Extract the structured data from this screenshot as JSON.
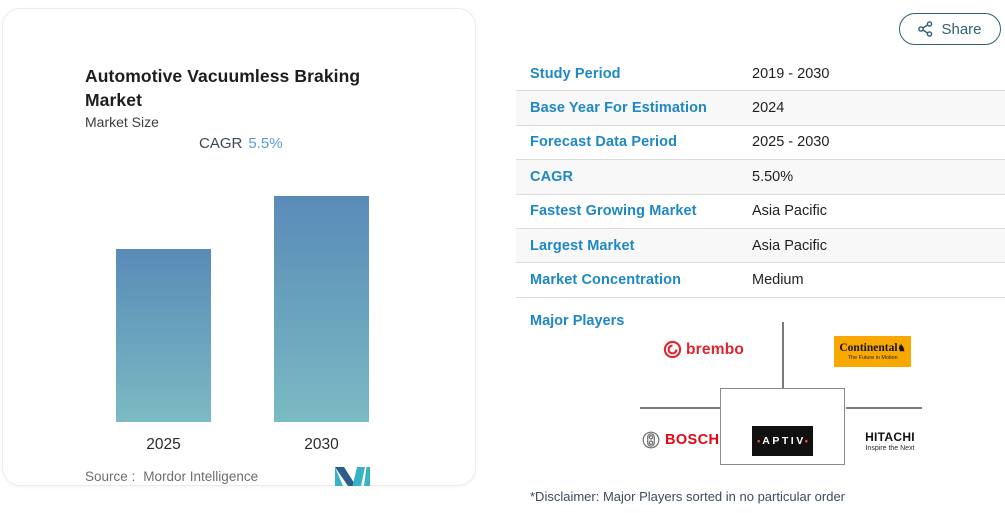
{
  "colors": {
    "label_blue": "#1e88c5",
    "share_teal": "#2e6077",
    "cagr_blue": "#5b9bd5",
    "bar_top": "#5a8bb8",
    "bar_bottom": "#7abbc3",
    "row_alt_bg": "#f8f8f8",
    "row_border": "#dcdcdc",
    "continental_yellow": "#f9a800",
    "brembo_red": "#e0252f",
    "bosch_red": "#e30613"
  },
  "card": {
    "title": "Automotive Vacuumless Braking Market",
    "subtitle": "Market Size",
    "cagr_label": "CAGR",
    "cagr_value": "5.5%",
    "source_label": "Source :",
    "source_value": "Mordor Intelligence"
  },
  "chart_data": {
    "type": "bar",
    "title": "Automotive Vacuumless Braking Market",
    "subtitle": "Market Size",
    "annotation": "CAGR 5.5%",
    "categories": [
      "2025",
      "2030"
    ],
    "values": [
      100,
      131
    ],
    "value_units": "relative index (2025 = 100); no y-axis shown, growth implies 5.5% CAGR 2025→2030",
    "xlabel": "",
    "ylabel": "",
    "grid": false,
    "legend": false,
    "bar_gradient": [
      "#5a8bb8",
      "#7abbc3"
    ]
  },
  "share": {
    "label": "Share"
  },
  "table": {
    "rows": [
      {
        "label": "Study Period",
        "value": "2019 - 2030"
      },
      {
        "label": "Base Year For Estimation",
        "value": "2024"
      },
      {
        "label": "Forecast Data Period",
        "value": "2025 - 2030"
      },
      {
        "label": "CAGR",
        "value": "5.50%"
      },
      {
        "label": "Fastest Growing Market",
        "value": "Asia Pacific"
      },
      {
        "label": "Largest Market",
        "value": "Asia Pacific"
      },
      {
        "label": "Market Concentration",
        "value": "Medium"
      }
    ]
  },
  "major_players": {
    "label": "Major Players",
    "brembo": "brembo",
    "continental": "Continental",
    "continental_horse": "♞",
    "continental_tagline": "The Future in Motion",
    "bosch": "BOSCH",
    "aptiv": "APTIV",
    "hitachi": "HITACHI",
    "hitachi_tagline": "Inspire the Next",
    "disclaimer": "*Disclaimer: Major Players sorted in no particular order"
  }
}
